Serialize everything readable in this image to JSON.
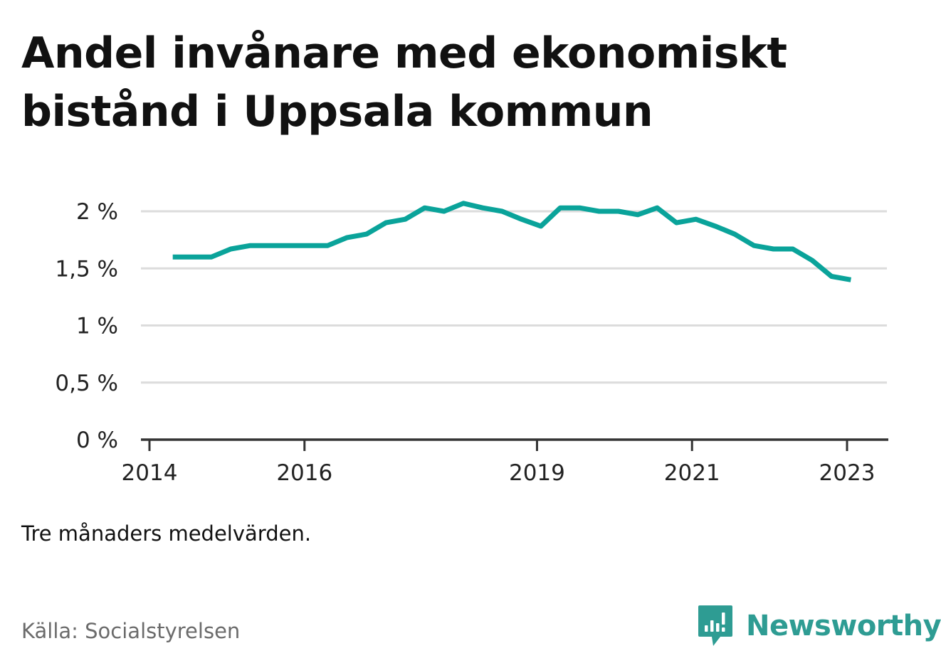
{
  "title": "Andel invånare med ekonomiskt bistånd i Uppsala kommun",
  "note": "Tre månaders medelvärden.",
  "source": "Källa: Socialstyrelsen",
  "brand": {
    "name": "Newsworthy",
    "icon": "newsworthy-logo-icon",
    "color": "#2e9c93"
  },
  "chart_data": {
    "type": "line",
    "title": "Andel invånare med ekonomiskt bistånd i Uppsala kommun",
    "xlabel": "",
    "ylabel": "",
    "line_color": "#0aa39a",
    "grid": true,
    "ylim": [
      0,
      2.1
    ],
    "xlim": [
      2014.0,
      2023.5
    ],
    "y_ticks": [
      {
        "value": 0,
        "label": "0 %"
      },
      {
        "value": 0.5,
        "label": "0,5 %"
      },
      {
        "value": 1,
        "label": "1 %"
      },
      {
        "value": 1.5,
        "label": "1,5 %"
      },
      {
        "value": 2,
        "label": "2 %"
      }
    ],
    "x_ticks": [
      {
        "value": 2014,
        "label": "2014"
      },
      {
        "value": 2016,
        "label": "2016"
      },
      {
        "value": 2019,
        "label": "2019"
      },
      {
        "value": 2021,
        "label": "2021"
      },
      {
        "value": 2023,
        "label": "2023"
      }
    ],
    "series": [
      {
        "name": "",
        "x": [
          2014.3,
          2014.55,
          2014.8,
          2015.05,
          2015.3,
          2015.55,
          2015.8,
          2016.05,
          2016.3,
          2016.55,
          2016.8,
          2017.05,
          2017.3,
          2017.55,
          2017.8,
          2018.05,
          2018.3,
          2018.55,
          2018.8,
          2019.05,
          2019.3,
          2019.55,
          2019.8,
          2020.05,
          2020.3,
          2020.55,
          2020.8,
          2021.05,
          2021.3,
          2021.55,
          2021.8,
          2022.05,
          2022.3,
          2022.55,
          2022.8,
          2023.05
        ],
        "values": [
          1.6,
          1.6,
          1.6,
          1.67,
          1.7,
          1.7,
          1.7,
          1.7,
          1.7,
          1.77,
          1.8,
          1.9,
          1.93,
          2.03,
          2.0,
          2.07,
          2.03,
          2.0,
          1.93,
          1.87,
          2.03,
          2.03,
          2.0,
          2.0,
          1.97,
          2.03,
          1.9,
          1.93,
          1.87,
          1.8,
          1.7,
          1.67,
          1.67,
          1.57,
          1.43,
          1.4
        ]
      }
    ]
  }
}
